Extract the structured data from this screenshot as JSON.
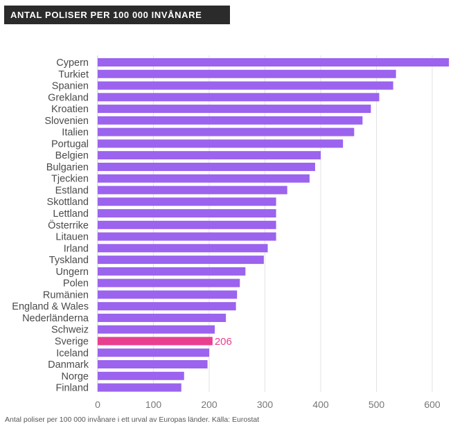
{
  "title": "ANTAL POLISER PER 100 000 INVÅNARE",
  "caption": "Antal poliser per 100 000 invånare i ett urval av Europas länder. Källa: Eurostat",
  "colors": {
    "bar": "#9b63ee",
    "highlight": "#e8408e",
    "title_bg": "#2b2b2b"
  },
  "chart_data": {
    "type": "bar",
    "orientation": "horizontal",
    "categories": [
      "Cypern",
      "Turkiet",
      "Spanien",
      "Grekland",
      "Kroatien",
      "Slovenien",
      "Italien",
      "Portugal",
      "Belgien",
      "Bulgarien",
      "Tjeckien",
      "Estland",
      "Skottland",
      "Lettland",
      "Österrike",
      "Litauen",
      "Irland",
      "Tyskland",
      "Ungern",
      "Polen",
      "Rumänien",
      "England & Wales",
      "Nederländerna",
      "Schweiz",
      "Sverige",
      "Iceland",
      "Danmark",
      "Norge",
      "Finland"
    ],
    "values": [
      630,
      535,
      530,
      505,
      490,
      475,
      460,
      440,
      400,
      390,
      380,
      340,
      320,
      320,
      320,
      320,
      305,
      298,
      265,
      255,
      250,
      248,
      230,
      210,
      206,
      200,
      197,
      155,
      150
    ],
    "highlight": "Sverige",
    "data_labels": [
      {
        "category": "Sverige",
        "text": "206"
      }
    ],
    "xlim": [
      0,
      630
    ],
    "xticks": [
      0,
      100,
      200,
      300,
      400,
      500,
      600
    ],
    "xlabel": "",
    "ylabel": "",
    "grid": true
  }
}
